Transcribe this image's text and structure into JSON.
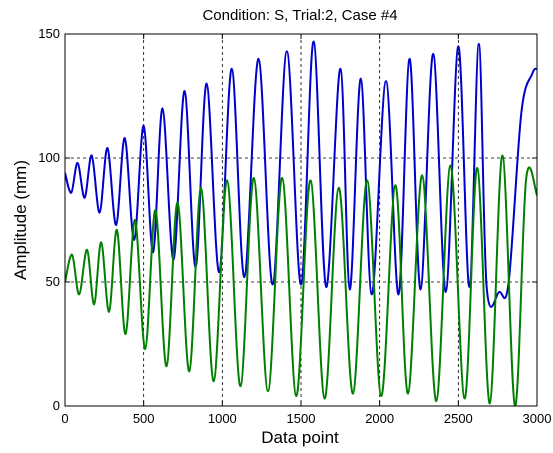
{
  "chart_data": {
    "type": "line",
    "title": "Condition: S, Trial:2, Case #4",
    "xlabel": "Data point",
    "ylabel": "Amplitude (mm)",
    "xlim": [
      0,
      3000
    ],
    "ylim": [
      0,
      150
    ],
    "xticks": [
      0,
      500,
      1000,
      1500,
      2000,
      2500,
      3000
    ],
    "yticks": [
      0,
      50,
      100,
      150
    ],
    "xtick_labels": [
      "0",
      "500",
      "1000",
      "1500",
      "2000",
      "2500",
      "3000"
    ],
    "ytick_labels": [
      "0",
      "50",
      "100",
      "150"
    ],
    "grid": true,
    "legend": "none",
    "series": [
      {
        "color": "#0000cc",
        "points": [
          [
            0,
            94
          ],
          [
            40,
            86
          ],
          [
            80,
            98
          ],
          [
            125,
            84
          ],
          [
            170,
            101
          ],
          [
            220,
            78
          ],
          [
            270,
            104
          ],
          [
            325,
            73
          ],
          [
            380,
            108
          ],
          [
            440,
            67
          ],
          [
            500,
            113
          ],
          [
            560,
            62
          ],
          [
            620,
            120
          ],
          [
            690,
            59
          ],
          [
            760,
            127
          ],
          [
            830,
            56
          ],
          [
            900,
            130
          ],
          [
            980,
            54
          ],
          [
            1060,
            136
          ],
          [
            1140,
            52
          ],
          [
            1230,
            140
          ],
          [
            1320,
            49
          ],
          [
            1410,
            143
          ],
          [
            1500,
            49
          ],
          [
            1580,
            147
          ],
          [
            1660,
            48
          ],
          [
            1750,
            136
          ],
          [
            1810,
            47
          ],
          [
            1880,
            132
          ],
          [
            1950,
            45
          ],
          [
            2040,
            131
          ],
          [
            2120,
            45
          ],
          [
            2190,
            140
          ],
          [
            2260,
            47
          ],
          [
            2340,
            142
          ],
          [
            2420,
            46
          ],
          [
            2500,
            145
          ],
          [
            2570,
            48
          ],
          [
            2630,
            146
          ],
          [
            2680,
            48
          ],
          [
            2760,
            46
          ],
          [
            2820,
            50
          ],
          [
            2900,
            118
          ],
          [
            2970,
            134
          ],
          [
            3000,
            136
          ]
        ]
      },
      {
        "color": "#008000",
        "points": [
          [
            0,
            50
          ],
          [
            45,
            61
          ],
          [
            90,
            45
          ],
          [
            140,
            63
          ],
          [
            185,
            41
          ],
          [
            230,
            66
          ],
          [
            280,
            38
          ],
          [
            330,
            71
          ],
          [
            385,
            29
          ],
          [
            445,
            75
          ],
          [
            510,
            23
          ],
          [
            575,
            79
          ],
          [
            645,
            16
          ],
          [
            715,
            82
          ],
          [
            790,
            14
          ],
          [
            865,
            88
          ],
          [
            945,
            10
          ],
          [
            1030,
            91
          ],
          [
            1115,
            8
          ],
          [
            1200,
            92
          ],
          [
            1290,
            6
          ],
          [
            1380,
            92
          ],
          [
            1470,
            4
          ],
          [
            1560,
            91
          ],
          [
            1650,
            3
          ],
          [
            1740,
            88
          ],
          [
            1830,
            5
          ],
          [
            1920,
            91
          ],
          [
            2010,
            4
          ],
          [
            2100,
            89
          ],
          [
            2180,
            5
          ],
          [
            2270,
            93
          ],
          [
            2360,
            2
          ],
          [
            2450,
            97
          ],
          [
            2540,
            3
          ],
          [
            2620,
            96
          ],
          [
            2700,
            1
          ],
          [
            2780,
            101
          ],
          [
            2860,
            0
          ],
          [
            2930,
            91
          ],
          [
            3000,
            85
          ]
        ]
      }
    ]
  }
}
